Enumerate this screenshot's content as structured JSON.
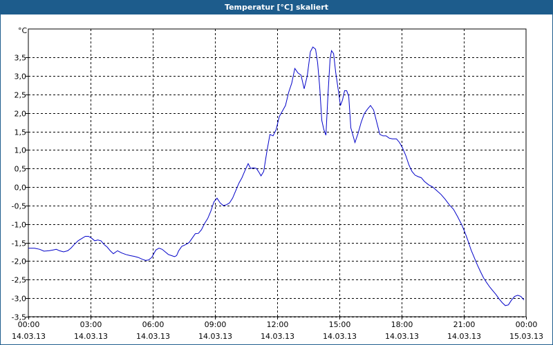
{
  "window": {
    "title": "Temperatur [°C] skaliert"
  },
  "colors": {
    "titlebar": "#1d5c8c",
    "line": "#0000c8",
    "grid": "#000000"
  },
  "chart_data": {
    "type": "line",
    "title": "Temperatur [°C] skaliert",
    "ylabel": "°C",
    "xlabel": "",
    "ylim": [
      -3.5,
      4.2
    ],
    "xlim": [
      0,
      24
    ],
    "grid": true,
    "yticks": [
      3.5,
      3.0,
      2.5,
      2.0,
      1.5,
      1.0,
      0.5,
      0.0,
      -0.5,
      -1.0,
      -1.5,
      -2.0,
      -2.5,
      -3.0,
      -3.5
    ],
    "ytick_labels": [
      "3,5",
      "3,0",
      "2,5",
      "2,0",
      "1,5",
      "1,0",
      "0,5",
      "0,0",
      "-0,5",
      "-1,0",
      "-1,5",
      "-2,0",
      "-2,5",
      "-3,0",
      "-3,5"
    ],
    "xticks": [
      {
        "x": 0,
        "time": "00:00",
        "date": "14.03.13"
      },
      {
        "x": 3,
        "time": "03:00",
        "date": "14.03.13"
      },
      {
        "x": 6,
        "time": "06:00",
        "date": "14.03.13"
      },
      {
        "x": 9,
        "time": "09:00",
        "date": "14.03.13"
      },
      {
        "x": 12,
        "time": "12:00",
        "date": "14.03.13"
      },
      {
        "x": 15,
        "time": "15:00",
        "date": "14.03.13"
      },
      {
        "x": 18,
        "time": "18:00",
        "date": "14.03.13"
      },
      {
        "x": 21,
        "time": "21:00",
        "date": "14.03.13"
      },
      {
        "x": 24,
        "time": "00:00",
        "date": "15.03.13"
      }
    ],
    "series": [
      {
        "values": [
          [
            0.0,
            -1.65
          ],
          [
            0.3,
            -1.65
          ],
          [
            0.55,
            -1.68
          ],
          [
            0.75,
            -1.73
          ],
          [
            1.0,
            -1.72
          ],
          [
            1.2,
            -1.7
          ],
          [
            1.35,
            -1.68
          ],
          [
            1.5,
            -1.72
          ],
          [
            1.7,
            -1.75
          ],
          [
            1.9,
            -1.72
          ],
          [
            2.05,
            -1.65
          ],
          [
            2.2,
            -1.56
          ],
          [
            2.4,
            -1.45
          ],
          [
            2.6,
            -1.38
          ],
          [
            2.75,
            -1.33
          ],
          [
            2.9,
            -1.33
          ],
          [
            3.05,
            -1.38
          ],
          [
            3.2,
            -1.45
          ],
          [
            3.35,
            -1.43
          ],
          [
            3.5,
            -1.45
          ],
          [
            3.65,
            -1.55
          ],
          [
            3.8,
            -1.62
          ],
          [
            3.95,
            -1.72
          ],
          [
            4.1,
            -1.8
          ],
          [
            4.3,
            -1.72
          ],
          [
            4.5,
            -1.78
          ],
          [
            4.7,
            -1.82
          ],
          [
            4.9,
            -1.85
          ],
          [
            5.1,
            -1.87
          ],
          [
            5.3,
            -1.9
          ],
          [
            5.5,
            -1.95
          ],
          [
            5.65,
            -1.98
          ],
          [
            5.8,
            -1.97
          ],
          [
            5.95,
            -1.9
          ],
          [
            6.05,
            -1.8
          ],
          [
            6.15,
            -1.7
          ],
          [
            6.3,
            -1.65
          ],
          [
            6.45,
            -1.68
          ],
          [
            6.6,
            -1.75
          ],
          [
            6.75,
            -1.82
          ],
          [
            6.9,
            -1.85
          ],
          [
            7.05,
            -1.88
          ],
          [
            7.15,
            -1.85
          ],
          [
            7.25,
            -1.72
          ],
          [
            7.4,
            -1.6
          ],
          [
            7.6,
            -1.55
          ],
          [
            7.75,
            -1.5
          ],
          [
            7.9,
            -1.38
          ],
          [
            8.05,
            -1.26
          ],
          [
            8.2,
            -1.25
          ],
          [
            8.35,
            -1.15
          ],
          [
            8.5,
            -0.98
          ],
          [
            8.65,
            -0.85
          ],
          [
            8.8,
            -0.65
          ],
          [
            8.95,
            -0.4
          ],
          [
            9.1,
            -0.3
          ],
          [
            9.25,
            -0.43
          ],
          [
            9.4,
            -0.5
          ],
          [
            9.55,
            -0.48
          ],
          [
            9.7,
            -0.43
          ],
          [
            9.85,
            -0.3
          ],
          [
            10.0,
            -0.1
          ],
          [
            10.15,
            0.1
          ],
          [
            10.3,
            0.25
          ],
          [
            10.45,
            0.45
          ],
          [
            10.6,
            0.63
          ],
          [
            10.72,
            0.5
          ],
          [
            10.85,
            0.52
          ],
          [
            11.0,
            0.5
          ],
          [
            11.12,
            0.4
          ],
          [
            11.22,
            0.3
          ],
          [
            11.35,
            0.42
          ],
          [
            11.5,
            0.95
          ],
          [
            11.65,
            1.42
          ],
          [
            11.8,
            1.38
          ],
          [
            11.95,
            1.55
          ],
          [
            12.1,
            1.9
          ],
          [
            12.25,
            2.05
          ],
          [
            12.4,
            2.2
          ],
          [
            12.55,
            2.55
          ],
          [
            12.7,
            2.8
          ],
          [
            12.85,
            3.2
          ],
          [
            13.0,
            3.08
          ],
          [
            13.15,
            3.02
          ],
          [
            13.3,
            2.65
          ],
          [
            13.45,
            3.0
          ],
          [
            13.6,
            3.65
          ],
          [
            13.72,
            3.78
          ],
          [
            13.85,
            3.72
          ],
          [
            13.95,
            3.35
          ],
          [
            14.05,
            2.7
          ],
          [
            14.15,
            1.8
          ],
          [
            14.25,
            1.55
          ],
          [
            14.35,
            1.4
          ],
          [
            14.45,
            2.5
          ],
          [
            14.55,
            3.45
          ],
          [
            14.62,
            3.68
          ],
          [
            14.72,
            3.6
          ],
          [
            14.82,
            3.1
          ],
          [
            14.95,
            2.6
          ],
          [
            15.05,
            2.2
          ],
          [
            15.15,
            2.35
          ],
          [
            15.25,
            2.6
          ],
          [
            15.35,
            2.6
          ],
          [
            15.45,
            2.45
          ],
          [
            15.55,
            1.6
          ],
          [
            15.65,
            1.4
          ],
          [
            15.75,
            1.2
          ],
          [
            15.9,
            1.45
          ],
          [
            16.05,
            1.75
          ],
          [
            16.2,
            1.98
          ],
          [
            16.35,
            2.1
          ],
          [
            16.5,
            2.2
          ],
          [
            16.65,
            2.08
          ],
          [
            16.8,
            1.75
          ],
          [
            16.95,
            1.42
          ],
          [
            17.1,
            1.38
          ],
          [
            17.25,
            1.38
          ],
          [
            17.4,
            1.32
          ],
          [
            17.55,
            1.3
          ],
          [
            17.75,
            1.3
          ],
          [
            17.9,
            1.2
          ],
          [
            18.05,
            1.05
          ],
          [
            18.2,
            0.85
          ],
          [
            18.35,
            0.6
          ],
          [
            18.5,
            0.42
          ],
          [
            18.65,
            0.32
          ],
          [
            18.8,
            0.28
          ],
          [
            18.95,
            0.25
          ],
          [
            19.1,
            0.15
          ],
          [
            19.3,
            0.06
          ],
          [
            19.5,
            0.0
          ],
          [
            19.7,
            -0.1
          ],
          [
            19.9,
            -0.2
          ],
          [
            20.1,
            -0.33
          ],
          [
            20.3,
            -0.48
          ],
          [
            20.5,
            -0.6
          ],
          [
            20.7,
            -0.8
          ],
          [
            20.9,
            -1.02
          ],
          [
            21.05,
            -1.22
          ],
          [
            21.2,
            -1.45
          ],
          [
            21.35,
            -1.7
          ],
          [
            21.5,
            -1.9
          ],
          [
            21.65,
            -2.1
          ],
          [
            21.8,
            -2.28
          ],
          [
            21.95,
            -2.45
          ],
          [
            22.1,
            -2.58
          ],
          [
            22.25,
            -2.7
          ],
          [
            22.4,
            -2.8
          ],
          [
            22.55,
            -2.9
          ],
          [
            22.7,
            -3.02
          ],
          [
            22.85,
            -3.12
          ],
          [
            23.0,
            -3.2
          ],
          [
            23.15,
            -3.18
          ],
          [
            23.3,
            -3.05
          ],
          [
            23.45,
            -2.95
          ],
          [
            23.6,
            -2.92
          ],
          [
            23.75,
            -2.95
          ],
          [
            23.9,
            -3.05
          ]
        ]
      }
    ]
  }
}
